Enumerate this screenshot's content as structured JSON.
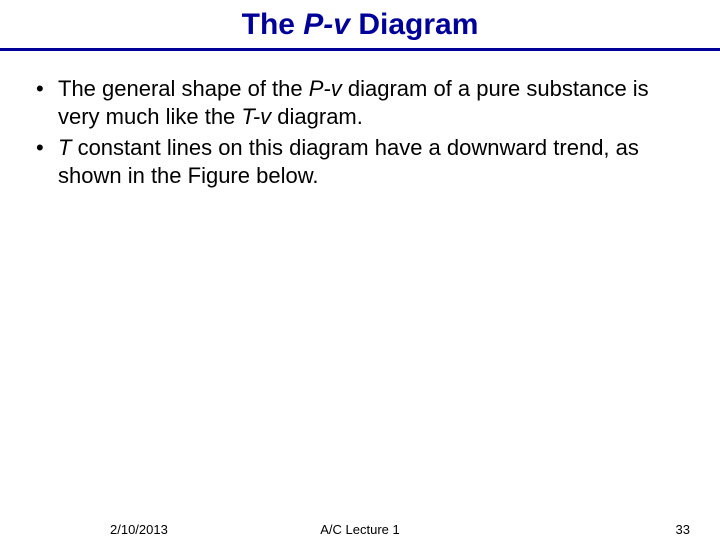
{
  "title": {
    "prefix": "The ",
    "italic": "P-v",
    "suffix": " Diagram"
  },
  "bullets": [
    {
      "parts": [
        {
          "text": "The general shape of the ",
          "italic": false
        },
        {
          "text": "P-v",
          "italic": true
        },
        {
          "text": " diagram of a pure substance is very much like the ",
          "italic": false
        },
        {
          "text": "T-v",
          "italic": true
        },
        {
          "text": " diagram.",
          "italic": false
        }
      ]
    },
    {
      "parts": [
        {
          "text": "T ",
          "italic": true
        },
        {
          "text": " constant lines on this diagram have a downward trend, as shown in the Figure below.",
          "italic": false
        }
      ]
    }
  ],
  "footer": {
    "date": "2/10/2013",
    "center": "A/C Lecture 1",
    "page": "33"
  },
  "colors": {
    "title": "#000099",
    "underline": "#000099",
    "text": "#000000",
    "background": "#ffffff"
  },
  "fonts": {
    "title_size": 30,
    "body_size": 22,
    "footer_size": 13
  }
}
